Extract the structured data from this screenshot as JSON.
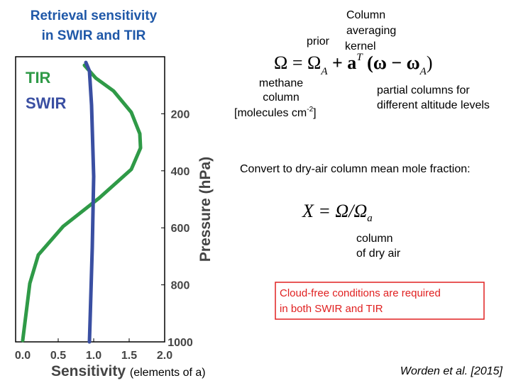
{
  "title": [
    "Retrieval sensitivity",
    "in SWIR and TIR"
  ],
  "equation": [
    "Ω = Ω",
    "A",
    " + a",
    "T",
    " (ω − ω",
    "A",
    ")"
  ],
  "label_prior": "prior",
  "label_kernel": [
    "Column",
    "averaging",
    "kernel"
  ],
  "label_methane": [
    "methane",
    "column",
    "[molecules cm",
    "-2",
    "]"
  ],
  "label_partial": [
    "partial columns for",
    "different altitude levels"
  ],
  "convert_text": "Convert to dry-air column mean mole fraction:",
  "mole_fraction": [
    "X = Ω/Ω",
    "a"
  ],
  "label_dry_air": [
    "column",
    "of dry air"
  ],
  "note_box": [
    "Cloud-free conditions are required",
    "in both SWIR and TIR"
  ],
  "citation": "Worden et al. [2015]",
  "chart_data": {
    "type": "line",
    "x_label": "Sensitivity",
    "x_label_note": "(elements of a)",
    "y_label": "Pressure (hPa)",
    "xlim": [
      -0.1,
      2.0
    ],
    "xticks": [
      {
        "value": 0,
        "label": "0.0"
      },
      0.5,
      {
        "value": 1,
        "label": "1.0"
      },
      1.5,
      {
        "value": 2,
        "label": "2.0"
      }
    ],
    "ylim": [
      1000,
      0
    ],
    "yticks": [
      200,
      400,
      600,
      800,
      1000
    ],
    "series": [
      {
        "name": "TIR",
        "color": "#2f9a47",
        "values": [
          0.87,
          1.03,
          1.28,
          1.53,
          1.65,
          1.66,
          1.53,
          1.08,
          0.57,
          0.22,
          0.1,
          0.05,
          0.0
        ],
        "pressure": [
          30,
          75,
          120,
          195,
          270,
          320,
          395,
          495,
          595,
          695,
          795,
          895,
          995
        ]
      },
      {
        "name": "SWIR",
        "color": "#3a4fa2",
        "values": [
          0.89,
          0.94,
          0.97,
          1.0,
          0.98,
          0.95,
          0.94
        ],
        "pressure": [
          20,
          50,
          170,
          420,
          670,
          920,
          1000
        ]
      }
    ]
  }
}
